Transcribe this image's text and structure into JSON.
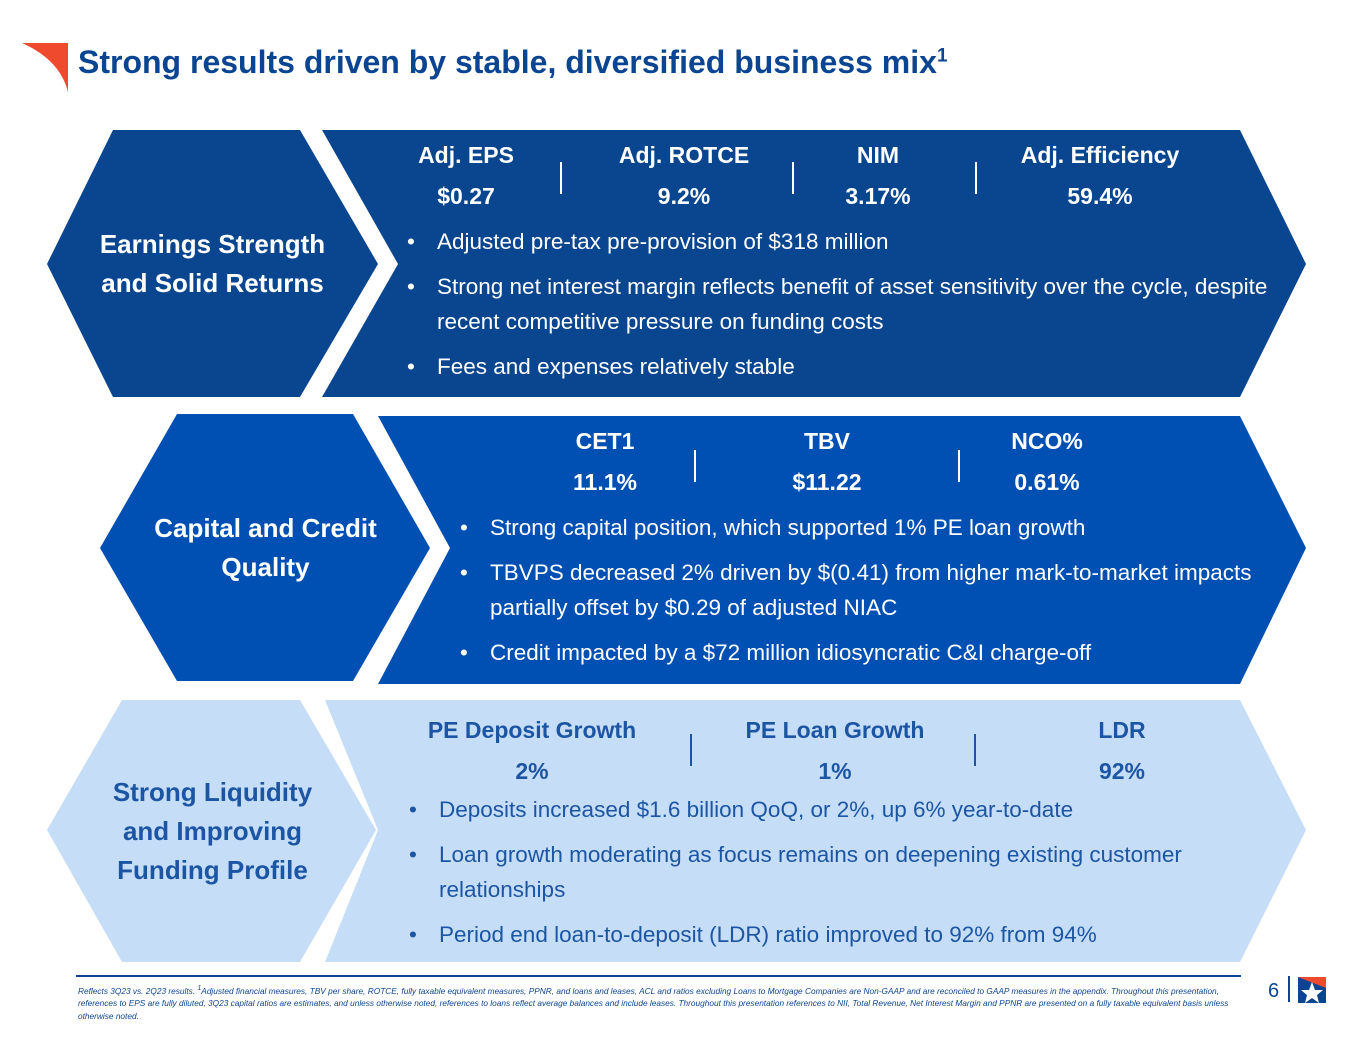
{
  "title": {
    "text": "Strong results driven by stable, diversified business mix",
    "footnote_mark": "1"
  },
  "colors": {
    "dark": "#0a468f",
    "mid": "#0050b3",
    "light": "#c5ddf7",
    "accent": "#f04a2e"
  },
  "sections": [
    {
      "label": "Earnings Strength and Solid Returns",
      "metrics": [
        {
          "name": "Adj. EPS",
          "value": "$0.27"
        },
        {
          "name": "Adj. ROTCE",
          "value": "9.2%"
        },
        {
          "name": "NIM",
          "value": "3.17%"
        },
        {
          "name": "Adj. Efficiency",
          "value": "59.4%"
        }
      ],
      "bullets": [
        "Adjusted pre-tax pre-provision of $318 million",
        "Strong net interest margin reflects benefit of asset sensitivity over the cycle, despite recent competitive pressure on funding costs",
        "Fees and expenses relatively stable"
      ]
    },
    {
      "label": "Capital and Credit Quality",
      "metrics": [
        {
          "name": "CET1",
          "value": "11.1%"
        },
        {
          "name": "TBV",
          "value": "$11.22"
        },
        {
          "name": "NCO%",
          "value": "0.61%"
        }
      ],
      "bullets": [
        "Strong capital position, which supported 1% PE loan growth",
        "TBVPS decreased 2% driven by $(0.41) from higher mark-to-market impacts partially offset by $0.29 of adjusted NIAC",
        "Credit impacted by a $72 million idiosyncratic C&I charge-off"
      ]
    },
    {
      "label": "Strong Liquidity and Improving Funding Profile",
      "metrics": [
        {
          "name": "PE Deposit Growth",
          "value": "2%"
        },
        {
          "name": "PE Loan Growth",
          "value": "1%"
        },
        {
          "name": "LDR",
          "value": "92%"
        }
      ],
      "bullets": [
        "Deposits increased $1.6 billion QoQ, or 2%, up 6% year-to-date",
        "Loan growth moderating as focus remains on deepening existing customer relationships",
        "Period end loan-to-deposit (LDR) ratio improved to 92% from 94%"
      ]
    }
  ],
  "footer": {
    "note_mark": "1",
    "text_a": "Reflects 3Q23 vs. 2Q23 results. ",
    "text_b": "Adjusted financial measures, TBV per share, ROTCE, fully taxable equivalent measures, PPNR, and loans and leases, ACL and ratios excluding Loans to Mortgage Companies are Non-GAAP and are reconciled to GAAP measures in the appendix. Throughout this presentation, references to EPS are fully diluted, 3Q23 capital ratios are estimates, and unless otherwise noted, references to loans reflect average balances and include leases. Throughout this presentation references to NII, Total Revenue, Net Interest Margin and PPNR are presented on a fully taxable equivalent basis unless otherwise noted.",
    "page": "6"
  }
}
